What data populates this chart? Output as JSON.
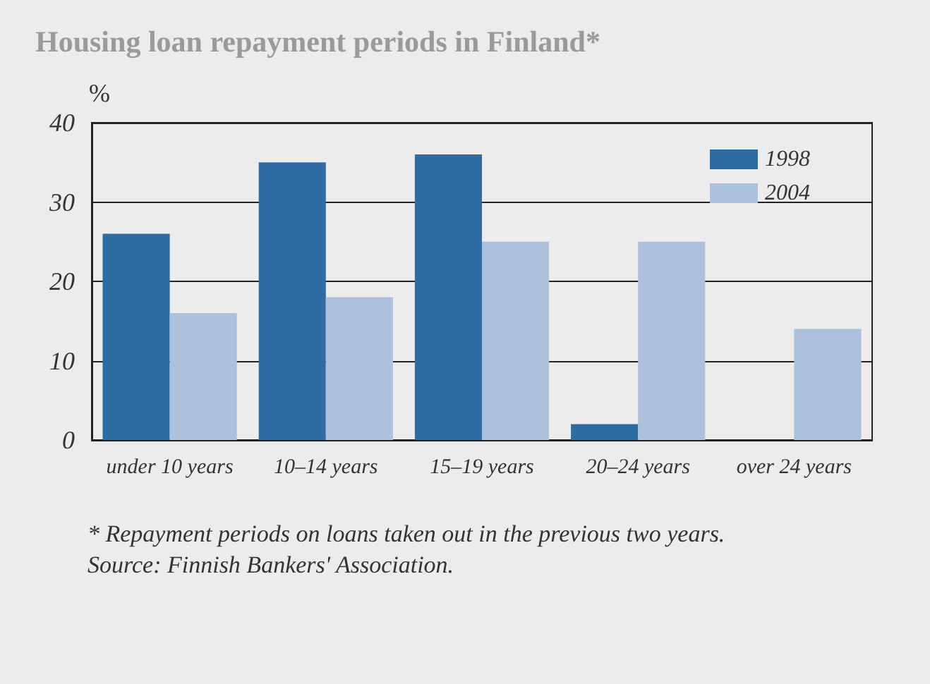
{
  "chart_data": {
    "type": "bar",
    "title": "Housing loan repayment periods in Finland*",
    "ylabel": "%",
    "categories": [
      "under 10 years",
      "10–14 years",
      "15–19 years",
      "20–24 years",
      "over 24 years"
    ],
    "series": [
      {
        "name": "1998",
        "color": "#2e6da4",
        "values": [
          26,
          35,
          36,
          2,
          0
        ]
      },
      {
        "name": "2004",
        "color": "#adc1dc",
        "values": [
          16,
          18,
          25,
          25,
          14
        ]
      }
    ],
    "ylim": [
      0,
      40
    ],
    "yticks": [
      0,
      10,
      20,
      30,
      40
    ],
    "grid": "y",
    "legend": "top right",
    "annotations": [
      "* Repayment periods on loans taken out in the previous two years.",
      "Source: Finnish Bankers' Association."
    ]
  }
}
